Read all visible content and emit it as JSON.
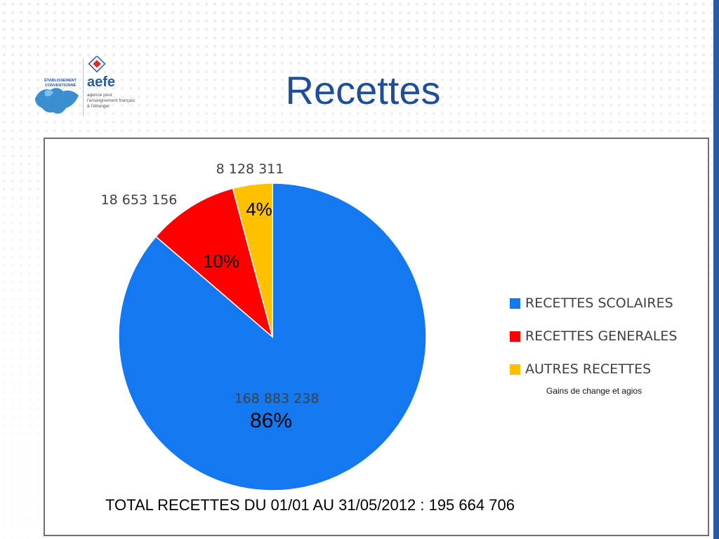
{
  "slide": {
    "title": "Recettes",
    "logo": {
      "seal_text": "ÉTABLISSEMENT CONVENTIONNÉ",
      "brand": "aefe",
      "subtitle": "agence pour l'enseignement français à l'étranger"
    },
    "total_text": "TOTAL RECETTES DU 01/01 AU 31/05/2012 : 195 664 706",
    "legend_note": "Gains de change et agios",
    "colors": {
      "title": "#1f4e98",
      "frame_border": "#6e6e6e",
      "accent": "#2a5aa0"
    }
  },
  "chart_data": {
    "type": "pie",
    "title": "",
    "legend_position": "right",
    "slices": [
      {
        "label": "RECETTES SCOLAIRES",
        "value": 168883238,
        "value_label": "168 883 238",
        "percent_label": "86%",
        "color": "#1478f0"
      },
      {
        "label": "RECETTES GENERALES",
        "value": 18653156,
        "value_label": "18 653 156",
        "percent_label": "10%",
        "color": "#ff0000"
      },
      {
        "label": "AUTRES RECETTES",
        "value": 8128311,
        "value_label": "8 128 311",
        "percent_label": "4%",
        "color": "#ffc000"
      }
    ],
    "total": 195664706
  }
}
